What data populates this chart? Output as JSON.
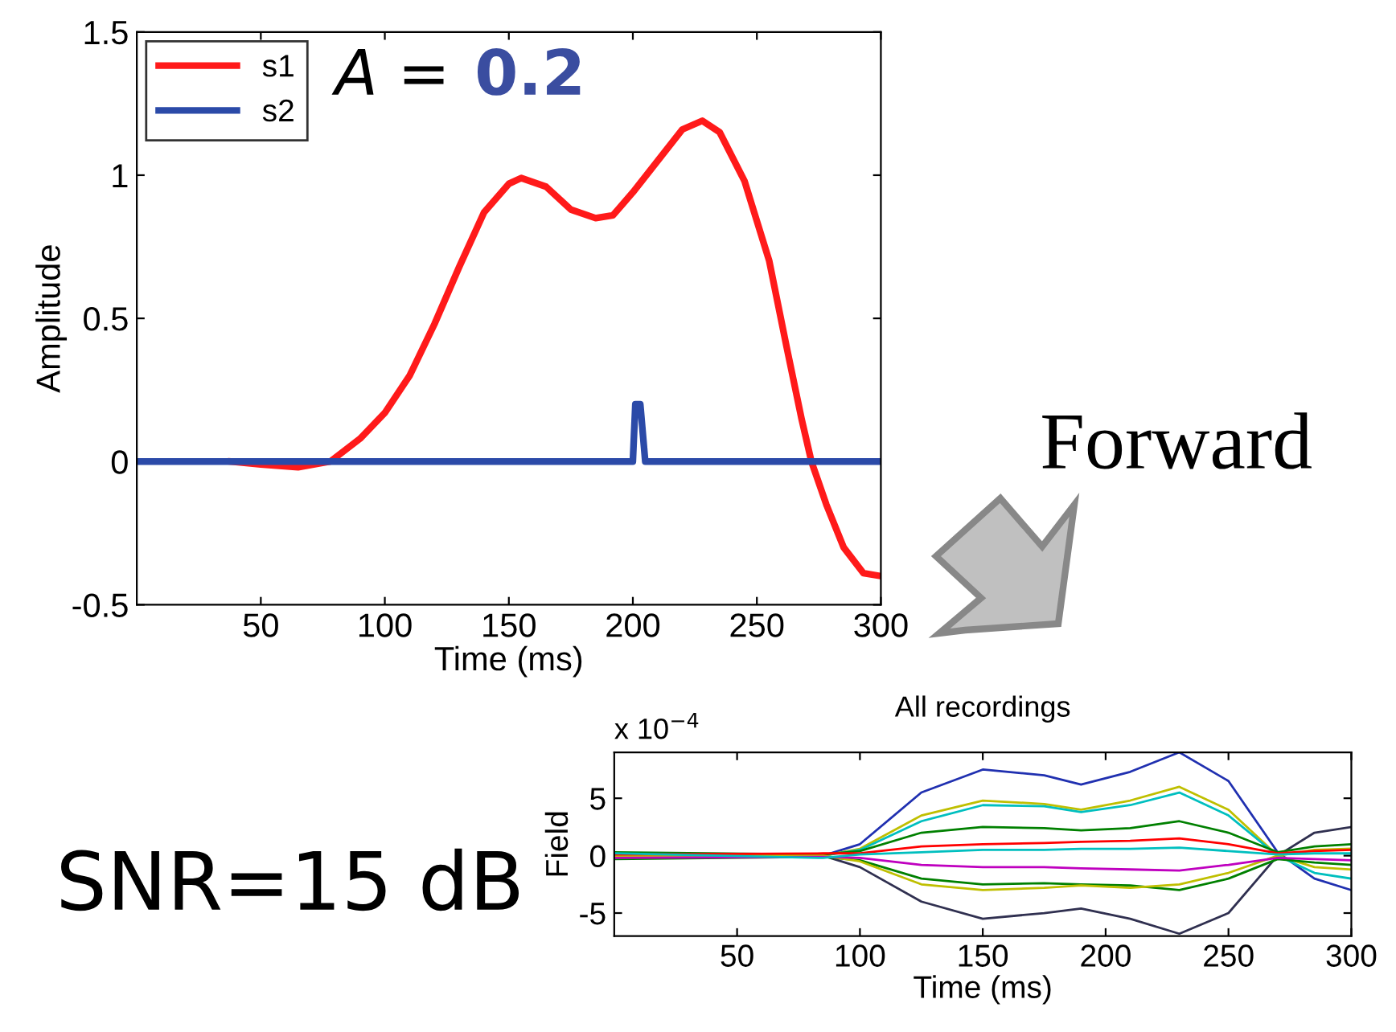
{
  "chart_data": [
    {
      "type": "line",
      "xlabel": "Time (ms)",
      "ylabel": "Amplitude",
      "xlim": [
        0,
        300
      ],
      "xticks": [
        50,
        100,
        150,
        200,
        250,
        300
      ],
      "ylim": [
        -0.5,
        1.5
      ],
      "yticks": [
        -0.5,
        0,
        0.5,
        1,
        1.5
      ],
      "legend": "top left",
      "grid": false,
      "line_style": "solid",
      "marker": "none",
      "annotations": [
        "A =",
        "0.2",
        "Forward",
        "SNR=15 dB"
      ],
      "series": [
        {
          "name": "s1",
          "color": "#ff1a1a",
          "x": [
            38,
            50,
            65,
            78,
            90,
            100,
            110,
            120,
            130,
            140,
            150,
            155,
            165,
            175,
            185,
            192,
            200,
            210,
            220,
            228,
            235,
            245,
            255,
            262,
            268,
            272,
            278,
            285,
            293,
            300
          ],
          "values": [
            0,
            -0.01,
            -0.02,
            0,
            0.08,
            0.17,
            0.3,
            0.48,
            0.68,
            0.87,
            0.97,
            0.99,
            0.96,
            0.88,
            0.85,
            0.86,
            0.94,
            1.05,
            1.16,
            1.19,
            1.15,
            0.98,
            0.7,
            0.4,
            0.15,
            0,
            -0.15,
            -0.3,
            -0.39,
            -0.4
          ]
        },
        {
          "name": "s2",
          "color": "#2b4aa8",
          "x": [
            0,
            200,
            201,
            203,
            205,
            300
          ],
          "values": [
            0,
            0,
            0.2,
            0.2,
            0,
            0
          ]
        }
      ]
    },
    {
      "type": "line",
      "title": "All recordings",
      "xlabel": "Time (ms)",
      "ylabel": "Field",
      "xlim": [
        0,
        300
      ],
      "xticks": [
        50,
        100,
        150,
        200,
        250,
        300
      ],
      "ylim": [
        -7,
        9
      ],
      "yticks": [
        -5,
        0,
        5
      ],
      "grid": false,
      "line_style": "solid",
      "marker": "none",
      "annotations": [
        "x 10$^{−4}$"
      ],
      "x": [
        0,
        85,
        100,
        125,
        150,
        175,
        190,
        210,
        230,
        250,
        270,
        285,
        300
      ],
      "series": [
        {
          "color": "#2030b0",
          "values": [
            0,
            0,
            1,
            5.5,
            7.5,
            7,
            6.2,
            7.3,
            9,
            6.5,
            0.3,
            -2,
            -3
          ]
        },
        {
          "color": "#303050",
          "values": [
            0,
            0,
            -1,
            -4,
            -5.5,
            -5,
            -4.6,
            -5.5,
            -6.8,
            -5,
            0,
            2,
            2.5
          ]
        },
        {
          "color": "#bfbf00",
          "values": [
            0,
            0,
            0.6,
            3.5,
            4.8,
            4.5,
            4,
            4.8,
            6,
            4,
            0,
            -1,
            -1.2
          ]
        },
        {
          "color": "#00bfbf",
          "values": [
            0,
            0,
            0.5,
            3,
            4.4,
            4.3,
            3.8,
            4.4,
            5.5,
            3.5,
            0,
            -1.5,
            -2
          ]
        },
        {
          "color": "#008000",
          "values": [
            0.3,
            0.1,
            0.4,
            2,
            2.5,
            2.4,
            2.2,
            2.4,
            3,
            2,
            0.3,
            0.8,
            1
          ]
        },
        {
          "color": "#008000",
          "values": [
            -0.3,
            -0.1,
            -0.4,
            -2,
            -2.5,
            -2.4,
            -2.5,
            -2.6,
            -3,
            -2,
            -0.3,
            -0.6,
            -0.8
          ]
        },
        {
          "color": "#bfbf00",
          "values": [
            0,
            0,
            -0.5,
            -2.5,
            -3,
            -2.8,
            -2.6,
            -2.8,
            -2.5,
            -1.5,
            0,
            0.5,
            0.6
          ]
        },
        {
          "color": "#ff0000",
          "values": [
            0.1,
            0.2,
            0.2,
            0.8,
            1,
            1.1,
            1.2,
            1.3,
            1.5,
            1,
            0.2,
            0.4,
            0.5
          ]
        },
        {
          "color": "#bf00bf",
          "values": [
            -0.2,
            -0.1,
            -0.2,
            -0.8,
            -1,
            -1,
            -1.1,
            -1.2,
            -1.3,
            -0.8,
            -0.2,
            -0.3,
            -0.4
          ]
        },
        {
          "color": "#00bfbf",
          "values": [
            0.2,
            -0.2,
            0.1,
            0.3,
            0.5,
            0.5,
            0.6,
            0.6,
            0.7,
            0.4,
            0.1,
            0.2,
            0.2
          ]
        }
      ]
    }
  ]
}
